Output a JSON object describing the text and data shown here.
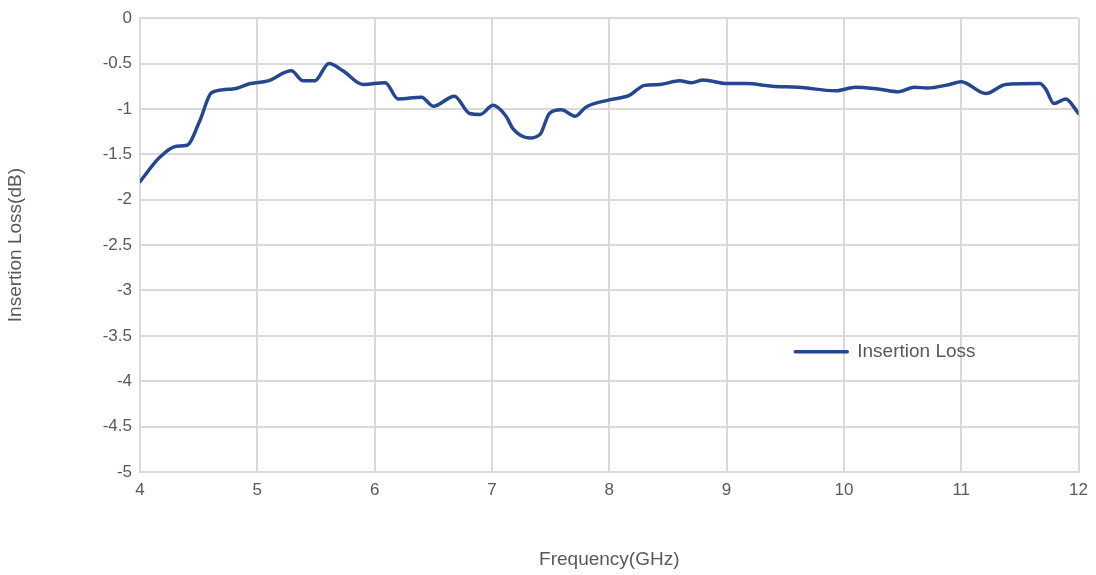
{
  "chart_data": {
    "type": "line",
    "xlabel": "Frequency(GHz)",
    "ylabel": "Insertion Loss(dB)",
    "xlim": [
      4,
      12
    ],
    "xticks": [
      4,
      5,
      6,
      7,
      8,
      9,
      10,
      11,
      12
    ],
    "ylim": [
      -5,
      0
    ],
    "yticks": [
      -5,
      -4.5,
      -4,
      -3.5,
      -3,
      -2.5,
      -2,
      -1.5,
      -1,
      -0.5,
      0
    ],
    "grid": true,
    "legend": "right",
    "marker": "none",
    "line_style": "solid",
    "series": [
      {
        "name": "Insertion Loss",
        "color": "#24478f",
        "x": [
          4,
          4.17,
          4.31,
          4.4,
          4.51,
          4.61,
          4.79,
          4.94,
          5.09,
          5.29,
          5.39,
          5.49,
          5.61,
          5.73,
          5.9,
          6.09,
          6.2,
          6.4,
          6.5,
          6.68,
          6.81,
          6.9,
          7.01,
          7.12,
          7.18,
          7.32,
          7.41,
          7.49,
          7.59,
          7.71,
          7.8,
          8,
          8.17,
          8.3,
          8.43,
          8.6,
          8.7,
          8.8,
          9,
          9.17,
          9.39,
          9.61,
          9.93,
          10.1,
          10.29,
          10.47,
          10.6,
          10.71,
          10.9,
          11,
          11.21,
          11.38,
          11.67,
          11.72,
          11.79,
          11.89,
          12
        ],
        "values": [
          -1.8,
          -1.53,
          -1.41,
          -1.4,
          -1.13,
          -0.82,
          -0.78,
          -0.72,
          -0.69,
          -0.58,
          -0.69,
          -0.69,
          -0.5,
          -0.58,
          -0.73,
          -0.71,
          -0.89,
          -0.87,
          -0.97,
          -0.86,
          -1.05,
          -1.06,
          -0.96,
          -1.08,
          -1.22,
          -1.32,
          -1.28,
          -1.05,
          -1.01,
          -1.08,
          -0.98,
          -0.9,
          -0.85,
          -0.74,
          -0.73,
          -0.69,
          -0.71,
          -0.68,
          -0.72,
          -0.72,
          -0.75,
          -0.76,
          -0.8,
          -0.76,
          -0.78,
          -0.81,
          -0.76,
          -0.77,
          -0.73,
          -0.7,
          -0.83,
          -0.73,
          -0.72,
          -0.78,
          -0.94,
          -0.89,
          -1.05
        ]
      }
    ]
  }
}
